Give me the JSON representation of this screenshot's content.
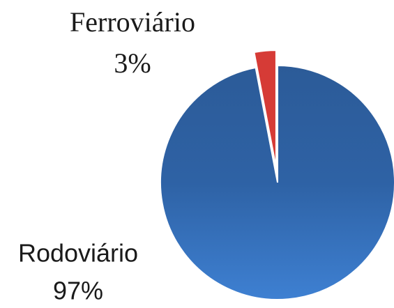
{
  "chart_data": {
    "type": "pie",
    "categories": [
      "Rodoviário",
      "Ferroviário"
    ],
    "values": [
      97,
      3
    ],
    "value_labels": [
      "97%",
      "3%"
    ],
    "colors": [
      "#3470b8",
      "#d63b36"
    ]
  }
}
